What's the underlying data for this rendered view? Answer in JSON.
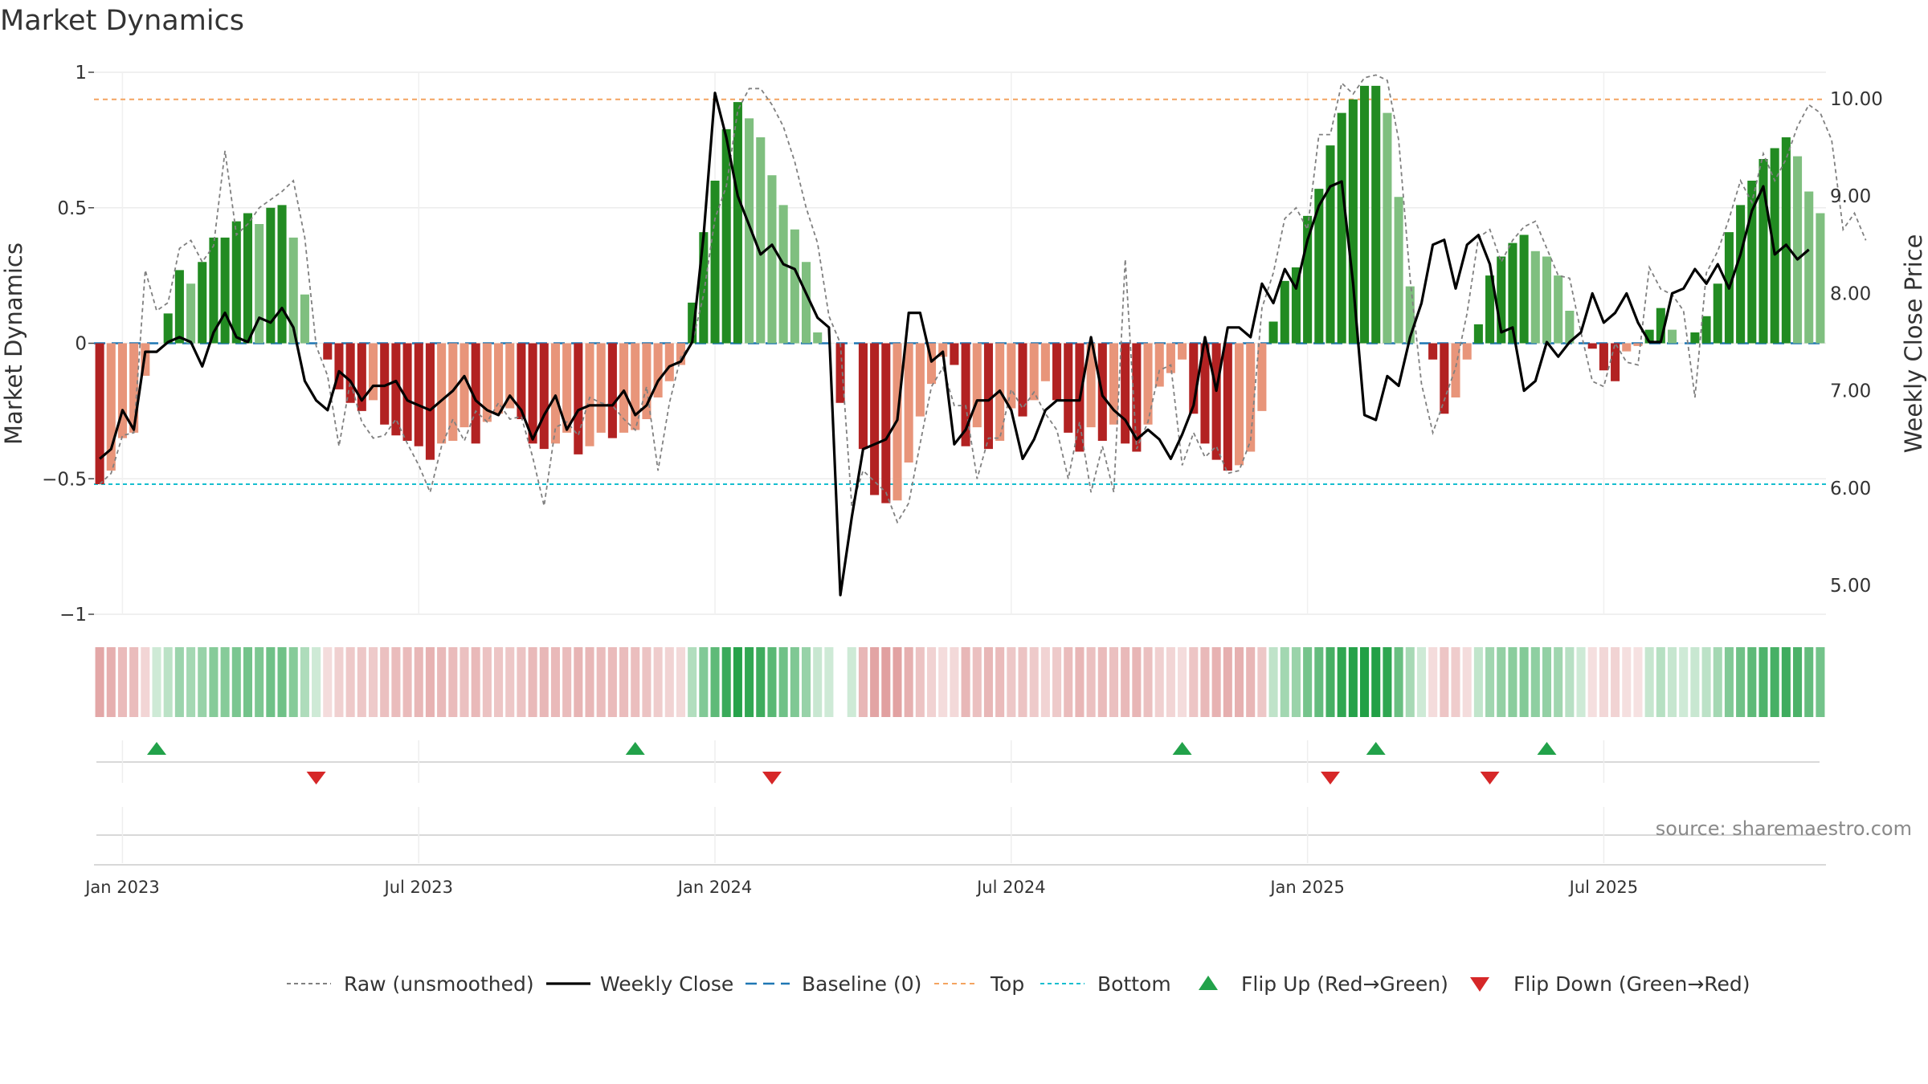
{
  "chart_data": {
    "type": "bar",
    "title": "Market Dynamics",
    "ylabel_left": "Market Dynamics",
    "ylabel_right": "Weekly Close Price",
    "ylim_left": [
      -1.0,
      1.0
    ],
    "ylim_right": [
      4.4,
      10.5
    ],
    "yticks_left": [
      {
        "value": 1,
        "label": "1"
      },
      {
        "value": 0.5,
        "label": "0.5"
      },
      {
        "value": 0,
        "label": "0"
      },
      {
        "value": -0.5,
        "label": "−0.5"
      },
      {
        "value": -1,
        "label": "−1"
      }
    ],
    "yticks_right": [
      {
        "value": 10,
        "label": "10.00"
      },
      {
        "value": 9,
        "label": "9.00"
      },
      {
        "value": 8,
        "label": "8.00"
      },
      {
        "value": 7,
        "label": "7.00"
      },
      {
        "value": 6,
        "label": "6.00"
      },
      {
        "value": 5,
        "label": "5.00"
      }
    ],
    "xticks": [
      {
        "week": 2,
        "label": "Jan 2023"
      },
      {
        "week": 28,
        "label": "Jul 2023"
      },
      {
        "week": 54,
        "label": "Jan 2024"
      },
      {
        "week": 80,
        "label": "Jul 2024"
      },
      {
        "week": 106,
        "label": "Jan 2025"
      },
      {
        "week": 132,
        "label": "Jul 2025"
      }
    ],
    "top_level": 0.9,
    "bottom_level": -0.52,
    "baseline": 0,
    "dynamics": [
      -0.52,
      -0.47,
      -0.35,
      -0.33,
      -0.12,
      0.0,
      0.11,
      0.27,
      0.22,
      0.3,
      0.39,
      0.39,
      0.45,
      0.48,
      0.44,
      0.5,
      0.51,
      0.39,
      0.18,
      0.0,
      -0.06,
      -0.17,
      -0.22,
      -0.25,
      -0.21,
      -0.3,
      -0.34,
      -0.36,
      -0.38,
      -0.43,
      -0.37,
      -0.36,
      -0.31,
      -0.37,
      -0.29,
      -0.26,
      -0.24,
      -0.28,
      -0.37,
      -0.39,
      -0.37,
      -0.33,
      -0.41,
      -0.38,
      -0.33,
      -0.35,
      -0.33,
      -0.32,
      -0.28,
      -0.2,
      -0.14,
      -0.08,
      0.15,
      0.41,
      0.6,
      0.79,
      0.89,
      0.83,
      0.76,
      0.62,
      0.51,
      0.42,
      0.3,
      0.04,
      0.0,
      -0.22,
      0.0,
      -0.39,
      -0.56,
      -0.59,
      -0.58,
      -0.44,
      -0.27,
      -0.15,
      -0.05,
      -0.08,
      -0.38,
      -0.31,
      -0.39,
      -0.36,
      -0.24,
      -0.27,
      -0.21,
      -0.14,
      -0.21,
      -0.33,
      -0.4,
      -0.31,
      -0.36,
      -0.3,
      -0.37,
      -0.4,
      -0.3,
      -0.16,
      -0.11,
      -0.06,
      -0.26,
      -0.37,
      -0.43,
      -0.47,
      -0.45,
      -0.4,
      -0.25,
      0.08,
      0.23,
      0.28,
      0.47,
      0.57,
      0.73,
      0.85,
      0.9,
      0.95,
      0.95,
      0.85,
      0.54,
      0.21,
      0.0,
      -0.06,
      -0.26,
      -0.2,
      -0.06,
      0.07,
      0.25,
      0.32,
      0.37,
      0.4,
      0.34,
      0.32,
      0.25,
      0.12,
      0.0,
      -0.02,
      -0.1,
      -0.14,
      -0.03,
      -0.01,
      0.05,
      0.13,
      0.05,
      0.0,
      0.04,
      0.1,
      0.22,
      0.41,
      0.51,
      0.6,
      0.68,
      0.72,
      0.76,
      0.69,
      0.56,
      0.48
    ],
    "raw_unsmoothed": [
      -0.52,
      -0.48,
      -0.34,
      -0.33,
      0.27,
      0.12,
      0.15,
      0.35,
      0.38,
      0.3,
      0.36,
      0.71,
      0.4,
      0.44,
      0.5,
      0.53,
      0.56,
      0.6,
      0.39,
      -0.01,
      -0.12,
      -0.38,
      -0.14,
      -0.29,
      -0.35,
      -0.34,
      -0.28,
      -0.37,
      -0.45,
      -0.55,
      -0.38,
      -0.28,
      -0.36,
      -0.25,
      -0.29,
      -0.22,
      -0.28,
      -0.27,
      -0.42,
      -0.6,
      -0.31,
      -0.29,
      -0.34,
      -0.2,
      -0.22,
      -0.23,
      -0.28,
      -0.32,
      -0.16,
      -0.47,
      -0.22,
      -0.05,
      0.0,
      0.18,
      0.46,
      0.58,
      0.86,
      0.94,
      0.94,
      0.88,
      0.8,
      0.67,
      0.5,
      0.37,
      0.1,
      0.0,
      -0.6,
      -0.47,
      -0.51,
      -0.55,
      -0.66,
      -0.59,
      -0.37,
      -0.16,
      -0.09,
      -0.23,
      -0.23,
      -0.5,
      -0.35,
      -0.35,
      -0.17,
      -0.24,
      -0.18,
      -0.26,
      -0.32,
      -0.5,
      -0.29,
      -0.55,
      -0.38,
      -0.55,
      0.31,
      -0.39,
      -0.29,
      -0.1,
      -0.08,
      -0.45,
      -0.33,
      -0.42,
      -0.38,
      -0.48,
      -0.47,
      -0.36,
      0.13,
      0.26,
      0.46,
      0.5,
      0.42,
      0.77,
      0.77,
      0.96,
      0.92,
      0.98,
      0.99,
      0.97,
      0.75,
      0.24,
      -0.15,
      -0.33,
      -0.21,
      -0.09,
      0.11,
      0.39,
      0.42,
      0.3,
      0.38,
      0.43,
      0.45,
      0.35,
      0.25,
      0.24,
      0.04,
      -0.14,
      -0.16,
      0.0,
      -0.07,
      -0.08,
      0.28,
      0.2,
      0.18,
      0.12,
      -0.2,
      0.26,
      0.34,
      0.46,
      0.6,
      0.52,
      0.7,
      0.6,
      0.68,
      0.8,
      0.88,
      0.85,
      0.75,
      0.42,
      0.48,
      0.38
    ],
    "weekly_close": [
      6.3,
      6.4,
      6.8,
      6.6,
      7.4,
      7.4,
      7.5,
      7.55,
      7.5,
      7.25,
      7.6,
      7.8,
      7.55,
      7.5,
      7.75,
      7.7,
      7.85,
      7.65,
      7.1,
      6.9,
      6.8,
      7.2,
      7.1,
      6.9,
      7.05,
      7.05,
      7.1,
      6.9,
      6.85,
      6.8,
      6.9,
      7.0,
      7.15,
      6.9,
      6.8,
      6.75,
      6.95,
      6.8,
      6.5,
      6.75,
      6.95,
      6.6,
      6.8,
      6.85,
      6.85,
      6.85,
      7.0,
      6.75,
      6.85,
      7.1,
      7.25,
      7.3,
      7.5,
      8.6,
      10.06,
      9.6,
      9.0,
      8.7,
      8.4,
      8.5,
      8.3,
      8.25,
      8.0,
      7.75,
      7.65,
      4.9,
      5.7,
      6.4,
      6.45,
      6.5,
      6.7,
      7.8,
      7.8,
      7.3,
      7.4,
      6.45,
      6.6,
      6.9,
      6.9,
      7.0,
      6.8,
      6.3,
      6.5,
      6.8,
      6.9,
      6.9,
      6.9,
      7.55,
      6.95,
      6.8,
      6.7,
      6.5,
      6.6,
      6.5,
      6.3,
      6.55,
      6.85,
      7.55,
      7.0,
      7.65,
      7.65,
      7.55,
      8.1,
      7.9,
      8.25,
      8.05,
      8.55,
      8.9,
      9.1,
      9.15,
      8.1,
      6.75,
      6.7,
      7.15,
      7.05,
      7.55,
      7.9,
      8.5,
      8.55,
      8.05,
      8.5,
      8.6,
      8.3,
      7.6,
      7.65,
      7.0,
      7.1,
      7.5,
      7.35,
      7.5,
      7.6,
      8.0,
      7.7,
      7.8,
      8.0,
      7.7,
      7.5,
      7.5,
      8.0,
      8.05,
      8.25,
      8.1,
      8.3,
      8.05,
      8.4,
      8.85,
      9.1,
      8.4,
      8.5,
      8.35,
      8.45
    ],
    "gap_weeks": [
      65
    ],
    "flip_up_weeks": [
      5,
      47,
      95,
      112,
      127
    ],
    "flip_down_weeks": [
      19,
      59,
      108,
      122
    ],
    "legend": [
      {
        "label": "Raw (unsmoothed)",
        "style": "dashed-gray"
      },
      {
        "label": "Weekly Close",
        "style": "solid-black"
      },
      {
        "label": "Baseline (0)",
        "style": "dashed-blue"
      },
      {
        "label": "Top",
        "style": "dashed-orange"
      },
      {
        "label": "Bottom",
        "style": "dashed-cyan"
      },
      {
        "label": "Flip Up (Red→Green)",
        "style": "triangle-up-green"
      },
      {
        "label": "Flip Down (Green→Red)",
        "style": "triangle-down-red"
      }
    ],
    "annotation": "source: sharemaestro.com",
    "legend_position": "bottom-center",
    "grid": true
  },
  "colors": {
    "strong_green": "#228B22",
    "light_green": "#7FBF7F",
    "strong_red": "#B22222",
    "light_red": "#E8957A",
    "baseline": "#1f77b4",
    "top": "#f4a460",
    "bottom": "#17becf",
    "raw": "#808080",
    "close": "#000000",
    "flip_up": "#22a24a",
    "flip_down": "#d62728"
  }
}
